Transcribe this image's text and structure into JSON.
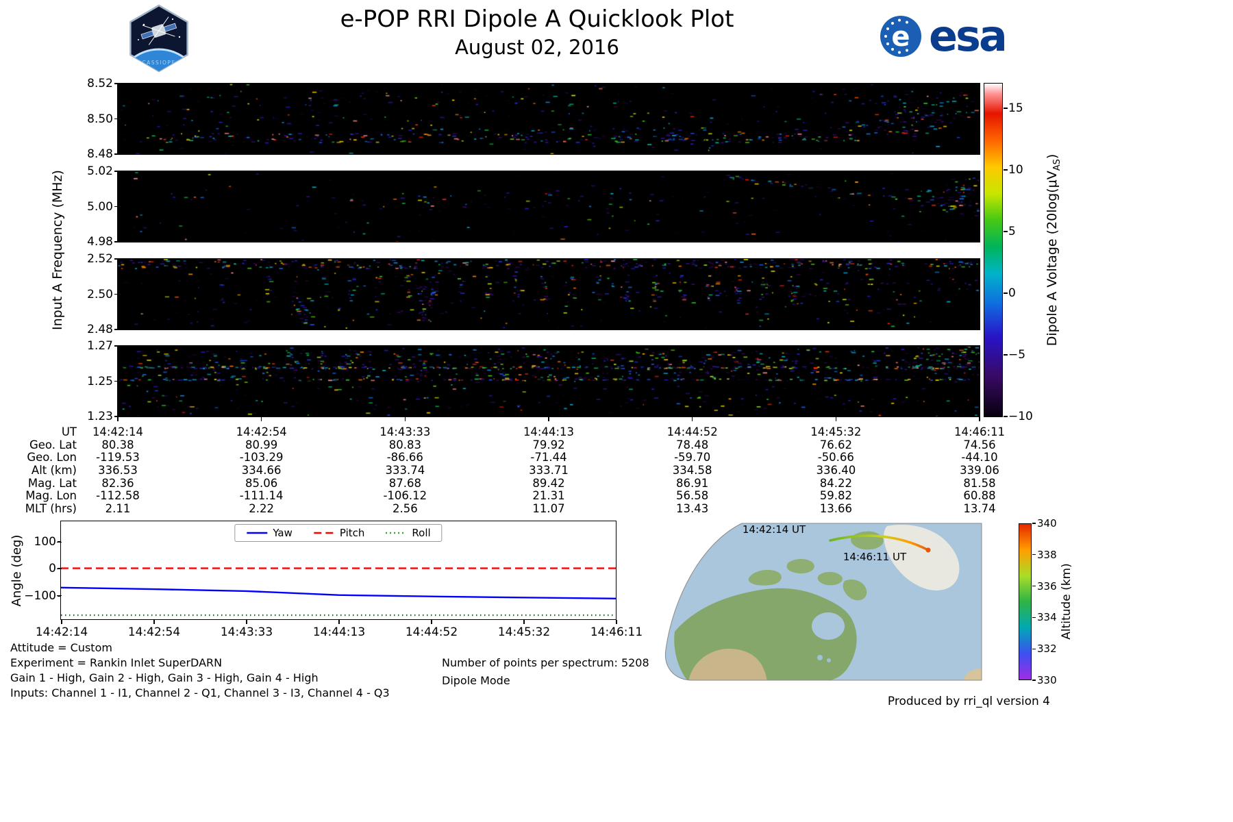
{
  "header": {
    "title": "e-POP RRI Dipole A Quicklook Plot",
    "subtitle": "August 02, 2016",
    "badge_text": "CASSIOPE",
    "esa_text": "esa",
    "esa_emblem_letter": "e"
  },
  "chart_data": [
    {
      "type": "heatmap",
      "title": "RRI Dipole A spectrograms (4 frequency bands vs UT)",
      "ylabel": "Input A Frequency (MHz)",
      "xlabel": "UT",
      "x_ticks": [
        "14:42:14",
        "14:42:54",
        "14:43:33",
        "14:44:13",
        "14:44:52",
        "14:45:32",
        "14:46:11"
      ],
      "colorbar": {
        "label_prefix": "Dipole A Voltage (20log(μV",
        "label_sub": "AS",
        "label_suffix": ")",
        "ticks": [
          15,
          10,
          5,
          0,
          -5,
          -10
        ],
        "tick_labels": [
          "15",
          "10",
          "5",
          "0",
          "−5",
          "−10"
        ],
        "vmin": -10,
        "vmax": 17,
        "stops": [
          [
            0,
            "#08000e"
          ],
          [
            0.12,
            "#380a64"
          ],
          [
            0.24,
            "#2814c8"
          ],
          [
            0.34,
            "#0f6ee0"
          ],
          [
            0.43,
            "#00b4c8"
          ],
          [
            0.51,
            "#00b45a"
          ],
          [
            0.59,
            "#46c814"
          ],
          [
            0.67,
            "#c8e600"
          ],
          [
            0.75,
            "#ffc800"
          ],
          [
            0.83,
            "#ff6400"
          ],
          [
            0.91,
            "#e61400"
          ],
          [
            0.97,
            "#ff9696"
          ],
          [
            1,
            "#ffffff"
          ]
        ]
      },
      "panels": [
        {
          "freq_min": 8.48,
          "freq_max": 8.52,
          "ytick_labels": [
            "8.52",
            "8.50",
            "8.48"
          ],
          "speckle_features": {
            "base_d": 0.014,
            "base_b": 0.25,
            "regions": [
              {
                "x0": 0.0,
                "y0": 0.7,
                "x1": 0.86,
                "y1": 0.83,
                "d": 0.16,
                "b": 0.62
              },
              {
                "x0": 0.3,
                "y0": 0.62,
                "x1": 0.86,
                "y1": 0.72,
                "d": 0.06,
                "b": 0.45
              },
              {
                "x0": 0.84,
                "y0": 0.5,
                "x1": 0.96,
                "y1": 0.72,
                "d": 0.14,
                "b": 0.55
              },
              {
                "x0": 0.9,
                "y0": 0.1,
                "x1": 1.0,
                "y1": 0.55,
                "d": 0.12,
                "b": 0.45
              },
              {
                "x0": 0.8,
                "y0": 0.05,
                "x1": 0.92,
                "y1": 0.3,
                "d": 0.04,
                "b": 0.35
              },
              {
                "x0": 0.05,
                "y0": 0.15,
                "x1": 0.8,
                "y1": 0.6,
                "d": 0.018,
                "b": 0.3
              }
            ],
            "vcols": {
              "x0": 0.1,
              "x1": 0.55,
              "period": 0.03,
              "w": 0.005,
              "y0": 0.15,
              "y1": 0.4,
              "d": 0.08,
              "b": 0.3
            }
          }
        },
        {
          "freq_min": 4.98,
          "freq_max": 5.02,
          "ytick_labels": [
            "5.02",
            "5.00",
            "4.98"
          ],
          "speckle_features": {
            "base_d": 0.01,
            "base_b": 0.24,
            "regions": [
              {
                "x0": 0.93,
                "y0": 0.25,
                "x1": 1.0,
                "y1": 0.6,
                "d": 0.12,
                "b": 0.55
              },
              {
                "x0": 0.96,
                "y0": 0.08,
                "x1": 1.0,
                "y1": 0.35,
                "d": 0.15,
                "b": 0.6
              },
              {
                "x0": 0.05,
                "y0": 0.34,
                "x1": 0.95,
                "y1": 0.42,
                "d": 0.05,
                "b": 0.35
              }
            ],
            "vcols": {
              "x0": 0.28,
              "x1": 0.62,
              "period": 0.024,
              "w": 0.004,
              "y0": 0.3,
              "y1": 0.55,
              "d": 0.18,
              "b": 0.35
            },
            "diag": {
              "x0": 0.7,
              "y0": 0.06,
              "x1": 1.0,
              "y1": 0.52,
              "n": 70,
              "b": 0.5
            }
          }
        },
        {
          "freq_min": 2.48,
          "freq_max": 2.52,
          "ytick_labels": [
            "2.52",
            "2.50",
            "2.48"
          ],
          "speckle_features": {
            "base_d": 0.018,
            "base_b": 0.28,
            "regions": [
              {
                "x0": 0.0,
                "y0": 0.0,
                "x1": 1.0,
                "y1": 0.13,
                "d": 0.22,
                "b": 0.5
              },
              {
                "x0": 0.55,
                "y0": 0.3,
                "x1": 0.85,
                "y1": 0.55,
                "d": 0.05,
                "b": 0.45
              },
              {
                "x0": 0.2,
                "y0": 0.55,
                "x1": 0.225,
                "y1": 0.95,
                "d": 0.25,
                "b": 0.4
              },
              {
                "x0": 0.345,
                "y0": 0.35,
                "x1": 0.365,
                "y1": 0.9,
                "d": 0.25,
                "b": 0.4
              },
              {
                "x0": 0.8,
                "y0": 0.15,
                "x1": 1.0,
                "y1": 0.6,
                "d": 0.03,
                "b": 0.35
              }
            ],
            "vcols": {
              "x0": 0.17,
              "x1": 0.8,
              "period": 0.032,
              "w": 0.007,
              "y0": 0.22,
              "y1": 0.6,
              "d": 0.28,
              "b": 0.5
            }
          }
        },
        {
          "freq_min": 1.23,
          "freq_max": 1.27,
          "ytick_labels": [
            "1.27",
            "1.25",
            "1.23"
          ],
          "speckle_features": {
            "base_d": 0.02,
            "base_b": 0.28,
            "regions": [
              {
                "x0": 0.0,
                "y0": 0.04,
                "x1": 1.0,
                "y1": 0.5,
                "d": 0.07,
                "b": 0.4
              },
              {
                "x0": 0.92,
                "y0": 0.0,
                "x1": 1.0,
                "y1": 0.35,
                "d": 0.18,
                "b": 0.5
              },
              {
                "x0": 0.0,
                "y0": 0.72,
                "x1": 1.0,
                "y1": 0.88,
                "d": 0.03,
                "b": 0.3
              }
            ],
            "hlines": [
              {
                "y": 0.3,
                "x0": 0.0,
                "x1": 1.0,
                "n": 260,
                "b": 0.72,
                "jit": 0.015
              },
              {
                "y": 0.47,
                "x0": 0.0,
                "x1": 0.98,
                "n": 200,
                "b": 0.55,
                "jit": 0.012
              }
            ],
            "vcols": {
              "x0": 0.05,
              "x1": 0.75,
              "period": 0.03,
              "w": 0.006,
              "y0": 0.1,
              "y1": 0.45,
              "d": 0.2,
              "b": 0.45
            }
          }
        }
      ]
    },
    {
      "type": "line",
      "title": "Spacecraft attitude angles",
      "ylabel": "Angle (deg)",
      "ylim": [
        -190,
        175
      ],
      "yticks": [
        100,
        0,
        -100
      ],
      "ytick_labels": [
        "100",
        "0",
        "−100"
      ],
      "x_ticks": [
        "14:42:14",
        "14:42:54",
        "14:43:33",
        "14:44:13",
        "14:44:52",
        "14:45:32",
        "14:46:11"
      ],
      "legend_position": "upper center",
      "series": [
        {
          "name": "Yaw",
          "color": "#0000ff",
          "style": "solid",
          "values": [
            -72,
            -78,
            -85,
            -100,
            -105,
            -109,
            -113
          ]
        },
        {
          "name": "Pitch",
          "color": "#ff0000",
          "style": "dashed",
          "values": [
            0,
            0,
            0,
            0,
            0,
            0,
            0
          ]
        },
        {
          "name": "Roll",
          "color": "#008000",
          "style": "dotted",
          "values": [
            -175,
            -175,
            -175,
            -175,
            -175,
            -175,
            -175
          ]
        }
      ]
    }
  ],
  "ephemeris": {
    "rows": [
      {
        "label": "UT",
        "values": [
          "14:42:14",
          "14:42:54",
          "14:43:33",
          "14:44:13",
          "14:44:52",
          "14:45:32",
          "14:46:11"
        ]
      },
      {
        "label": "Geo. Lat",
        "values": [
          "80.38",
          "80.99",
          "80.83",
          "79.92",
          "78.48",
          "76.62",
          "74.56"
        ]
      },
      {
        "label": "Geo. Lon",
        "values": [
          "-119.53",
          "-103.29",
          "-86.66",
          "-71.44",
          "-59.70",
          "-50.66",
          "-44.10"
        ]
      },
      {
        "label": "Alt (km)",
        "values": [
          "336.53",
          "334.66",
          "333.74",
          "333.71",
          "334.58",
          "336.40",
          "339.06"
        ]
      },
      {
        "label": "Mag. Lat",
        "values": [
          "82.36",
          "85.06",
          "87.68",
          "89.42",
          "86.91",
          "84.22",
          "81.58"
        ]
      },
      {
        "label": "Mag. Lon",
        "values": [
          "-112.58",
          "-111.14",
          "-106.12",
          "21.31",
          "56.58",
          "59.82",
          "60.88"
        ]
      },
      {
        "label": "MLT (hrs)",
        "values": [
          "2.11",
          "2.22",
          "2.56",
          "11.07",
          "13.43",
          "13.66",
          "13.74"
        ]
      }
    ]
  },
  "annotations": {
    "attitude": "Attitude = Custom",
    "experiment": "Experiment = Rankin Inlet SuperDARN",
    "gains": "Gain 1 - High, Gain 2 - High, Gain 3 - High, Gain 4 - High",
    "inputs": "Inputs: Channel 1 - I1, Channel 2 - Q1, Channel 3 - I3, Channel 4 - Q3",
    "points": "Number of points per spectrum: 5208",
    "mode": "Dipole Mode",
    "produced": "Produced by rri_ql version 4"
  },
  "map": {
    "start_label": "14:42:14 UT",
    "end_label": "14:46:11 UT",
    "colorbar": {
      "label": "Altitude (km)",
      "ticks": [
        340,
        338,
        336,
        334,
        332,
        330
      ],
      "stops_bottom_to_top": [
        "#a02ce6",
        "#3c50f0",
        "#00a8b4",
        "#2eb446",
        "#aadc28",
        "#ff9e00",
        "#e62800"
      ]
    }
  }
}
